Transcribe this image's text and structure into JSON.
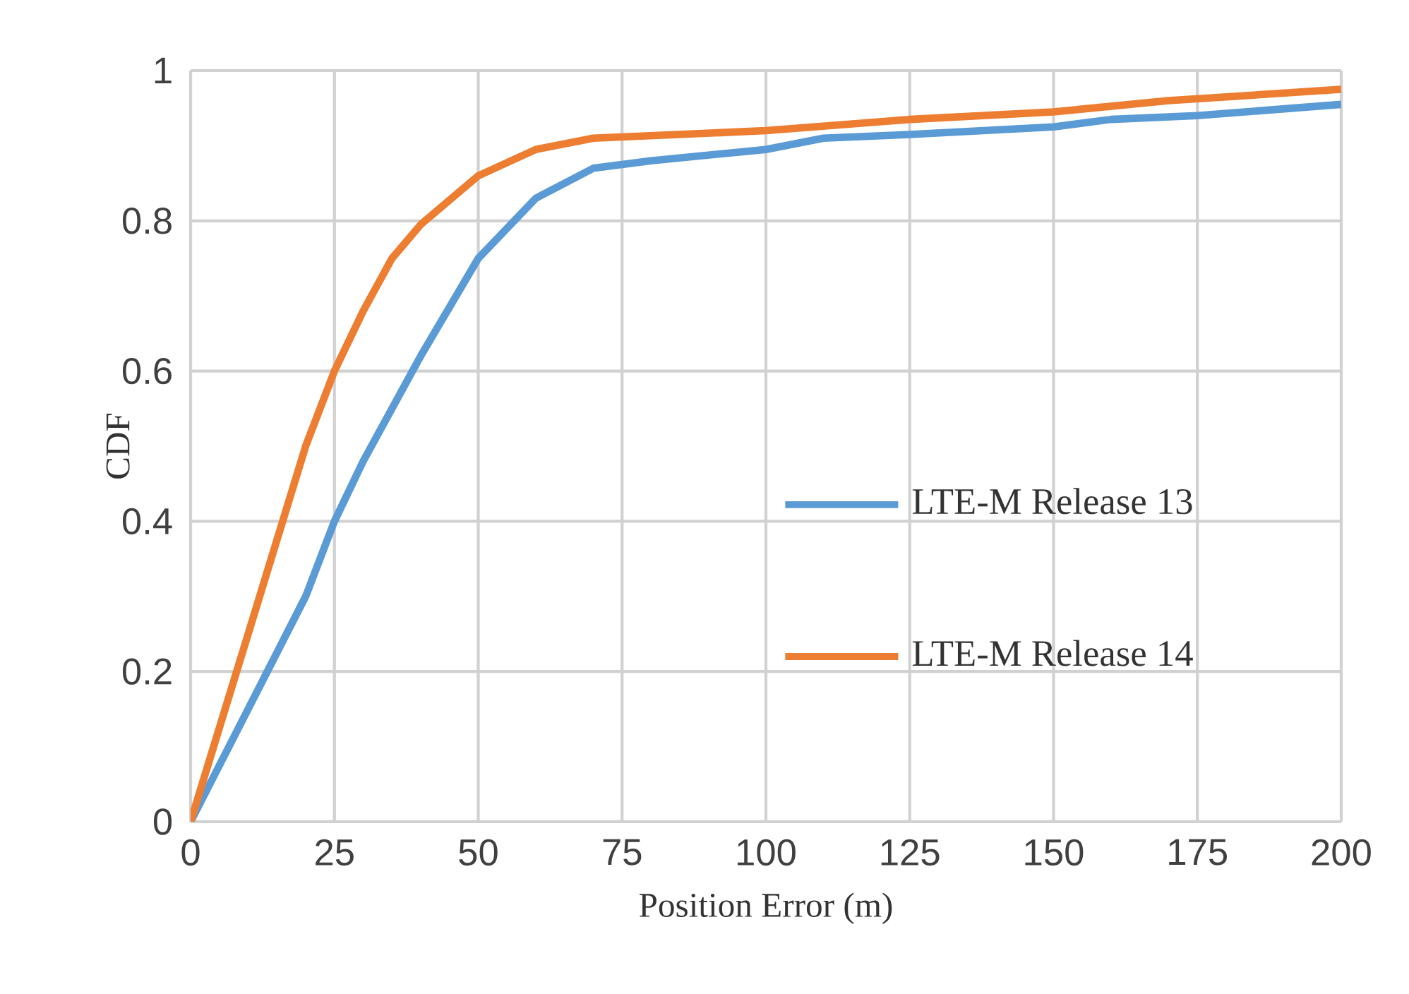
{
  "chart_data": {
    "type": "line",
    "xlabel": "Position Error (m)",
    "ylabel": "CDF",
    "xlim": [
      0,
      200
    ],
    "xticks": [
      0,
      25,
      50,
      75,
      100,
      125,
      150,
      175,
      200
    ],
    "ylim": [
      0,
      1
    ],
    "yticks": [
      0,
      0.2,
      0.4,
      0.6,
      0.8,
      1
    ],
    "grid": true,
    "legend": "right",
    "marker": "none",
    "line_style": "solid",
    "series": [
      {
        "name": "LTE-M Release 13",
        "color": "#5b9bd5",
        "x": [
          0,
          10,
          20,
          25,
          30,
          40,
          50,
          60,
          70,
          80,
          100,
          110,
          125,
          150,
          160,
          175,
          200
        ],
        "values": [
          0,
          0.15,
          0.3,
          0.4,
          0.48,
          0.62,
          0.75,
          0.83,
          0.87,
          0.88,
          0.895,
          0.91,
          0.915,
          0.925,
          0.935,
          0.94,
          0.955
        ]
      },
      {
        "name": "LTE-M Release 14",
        "color": "#ed7d31",
        "x": [
          0,
          10,
          20,
          25,
          30,
          35,
          40,
          50,
          60,
          70,
          100,
          125,
          150,
          170,
          200
        ],
        "values": [
          0,
          0.25,
          0.5,
          0.6,
          0.68,
          0.75,
          0.795,
          0.86,
          0.895,
          0.91,
          0.92,
          0.935,
          0.945,
          0.96,
          0.975
        ]
      }
    ]
  }
}
